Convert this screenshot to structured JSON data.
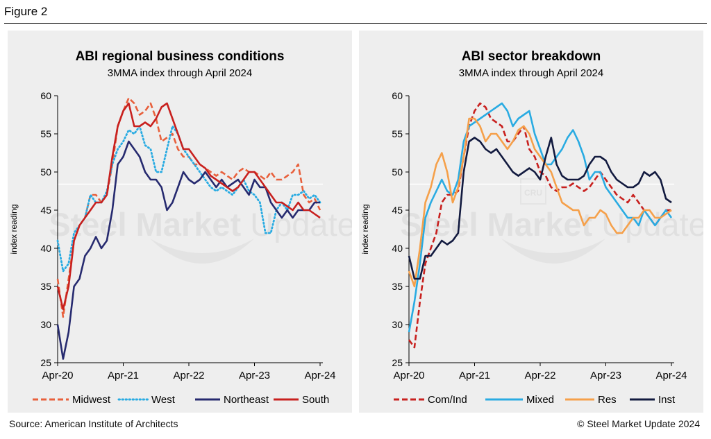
{
  "figure_label": "Figure 2",
  "footer": {
    "source": "Source: American Institute of Architects",
    "copyright": "© Steel Market Update 2024"
  },
  "watermark": {
    "text_bold": "Steel Market",
    "text_light": "Update",
    "badge": "CRU"
  },
  "colors": {
    "panel_bg": "#eeeeee",
    "midwest": "#E8603C",
    "west": "#29ABE2",
    "northeast": "#262A6F",
    "south": "#C8201E",
    "com_ind": "#C8201E",
    "mixed": "#29ABE2",
    "res": "#F5A04A",
    "inst": "#121A3F"
  },
  "chart_data": [
    {
      "type": "line",
      "title": "ABI regional business conditions",
      "subtitle": "3MMA index through April 2024",
      "ylabel": "index reading",
      "xlabel": "",
      "ylim": [
        25,
        60
      ],
      "yticks": [
        25,
        30,
        35,
        40,
        45,
        50,
        55,
        60
      ],
      "xlim": [
        0,
        48
      ],
      "xticks": [
        {
          "x": 0,
          "label": "Apr-20"
        },
        {
          "x": 12,
          "label": "Apr-21"
        },
        {
          "x": 24,
          "label": "Apr-22"
        },
        {
          "x": 36,
          "label": "Apr-23"
        },
        {
          "x": 48,
          "label": "Apr-24"
        }
      ],
      "reference_line": 48.4,
      "grid": false,
      "legend_position": "bottom",
      "series": [
        {
          "name": "Midwest",
          "color": "#E8603C",
          "style": "dashed",
          "values": [
            36,
            31,
            36,
            41,
            43,
            44,
            47,
            47,
            46,
            47,
            51,
            56,
            58,
            59.7,
            59,
            57.5,
            58,
            59,
            57,
            54,
            54.5,
            55,
            53,
            52,
            52,
            51,
            51,
            50.5,
            50,
            49.5,
            50,
            49.5,
            49,
            50,
            50.5,
            50,
            50,
            49.5,
            49,
            50,
            49,
            49,
            49.5,
            50,
            51,
            47,
            46,
            46.5,
            45
          ]
        },
        {
          "name": "West",
          "color": "#29ABE2",
          "style": "dotted",
          "values": [
            41,
            37,
            38,
            42,
            43,
            44,
            47,
            46,
            46,
            47.5,
            51,
            53,
            54,
            55.5,
            55,
            56,
            53.5,
            53,
            50,
            50,
            53,
            56,
            55,
            53,
            52,
            51,
            50,
            49,
            48,
            47.5,
            48,
            47.5,
            47,
            48,
            49,
            47.5,
            47,
            46,
            42,
            42,
            45,
            46,
            45,
            47,
            47,
            47.5,
            46.5,
            47,
            46
          ]
        },
        {
          "name": "Northeast",
          "color": "#262A6F",
          "style": "solid",
          "values": [
            30,
            25.5,
            29,
            35,
            36,
            39,
            40,
            41.5,
            40,
            41,
            45,
            51,
            52,
            54,
            53,
            52,
            50,
            49,
            49,
            48,
            45,
            46,
            48,
            50,
            49,
            48.5,
            49,
            50,
            49,
            48,
            49,
            48,
            48.5,
            49,
            48,
            47,
            49,
            48,
            48,
            46,
            45,
            44,
            45,
            44,
            45,
            45,
            45,
            46,
            46
          ]
        },
        {
          "name": "South",
          "color": "#C8201E",
          "style": "solid",
          "values": [
            35,
            32,
            35,
            41,
            43,
            44,
            45,
            46,
            46,
            47,
            52,
            56,
            58,
            59,
            56,
            56,
            56.5,
            56,
            57,
            58.5,
            59,
            57,
            55,
            53,
            53,
            52,
            51,
            50.5,
            49.5,
            49,
            48.5,
            48,
            47.5,
            48,
            49,
            50,
            50,
            49,
            48,
            47,
            46,
            46,
            45.5,
            45,
            46,
            45,
            45,
            44.5,
            44
          ]
        }
      ]
    },
    {
      "type": "line",
      "title": "ABI sector breakdown",
      "subtitle": "3MMA index through April 2024",
      "ylabel": "index reading",
      "xlabel": "",
      "ylim": [
        25,
        60
      ],
      "yticks": [
        25,
        30,
        35,
        40,
        45,
        50,
        55,
        60
      ],
      "xlim": [
        0,
        48
      ],
      "xticks": [
        {
          "x": 0,
          "label": "Apr-20"
        },
        {
          "x": 12,
          "label": "Apr-21"
        },
        {
          "x": 24,
          "label": "Apr-22"
        },
        {
          "x": 36,
          "label": "Apr-23"
        },
        {
          "x": 48,
          "label": "Apr-24"
        }
      ],
      "reference_line": 48.4,
      "grid": false,
      "legend_position": "bottom",
      "series": [
        {
          "name": "Com/Ind",
          "color": "#C8201E",
          "style": "dashed",
          "values": [
            28,
            27,
            33,
            38,
            40,
            42,
            46,
            47,
            47,
            47.5,
            52,
            56,
            58,
            59,
            58.5,
            57,
            56.5,
            56,
            54,
            54,
            55,
            56,
            53,
            52,
            50,
            49.5,
            48,
            47.5,
            48,
            48,
            48.5,
            48,
            47.5,
            48,
            49,
            50,
            49,
            48,
            47,
            46.5,
            46,
            47,
            46,
            45,
            44,
            43,
            44,
            45,
            45
          ]
        },
        {
          "name": "Mixed",
          "color": "#29ABE2",
          "style": "solid",
          "values": [
            29,
            33,
            38,
            44,
            46,
            47.5,
            49,
            47.5,
            47,
            49,
            54,
            56,
            56.5,
            57,
            57.5,
            58,
            58.5,
            59,
            58,
            56,
            57,
            57.5,
            58,
            55,
            53,
            51,
            51,
            52,
            53,
            54.5,
            55.5,
            54,
            52,
            49,
            50,
            50,
            48,
            47,
            46,
            45,
            44,
            44,
            43,
            45,
            44,
            43,
            44,
            45,
            44
          ]
        },
        {
          "name": "Res",
          "color": "#F5A04A",
          "style": "solid",
          "values": [
            37,
            35,
            40,
            46,
            48,
            51,
            52.5,
            50,
            46,
            48,
            52,
            57,
            57,
            56,
            54,
            55,
            55,
            54,
            53,
            54,
            55.5,
            56,
            55,
            53,
            52,
            51,
            50,
            48,
            46,
            45.5,
            45,
            45,
            43,
            44,
            44,
            45,
            44.5,
            43,
            42,
            42,
            43,
            44,
            44,
            45,
            45,
            44,
            44,
            44.5,
            45
          ]
        },
        {
          "name": "Inst",
          "color": "#121A3F",
          "style": "solid",
          "values": [
            39,
            36,
            36,
            39,
            39,
            40,
            41,
            40.5,
            41,
            42,
            50,
            54,
            54.5,
            54,
            53,
            52.5,
            53,
            52,
            51,
            50,
            49.5,
            50,
            50.5,
            50,
            49,
            52,
            54.5,
            51,
            49.5,
            49,
            49,
            49,
            49.5,
            51,
            52,
            52,
            51.5,
            50,
            49,
            48.5,
            48,
            48,
            48.5,
            50,
            49.5,
            50,
            49,
            46.5,
            46
          ]
        }
      ]
    }
  ]
}
